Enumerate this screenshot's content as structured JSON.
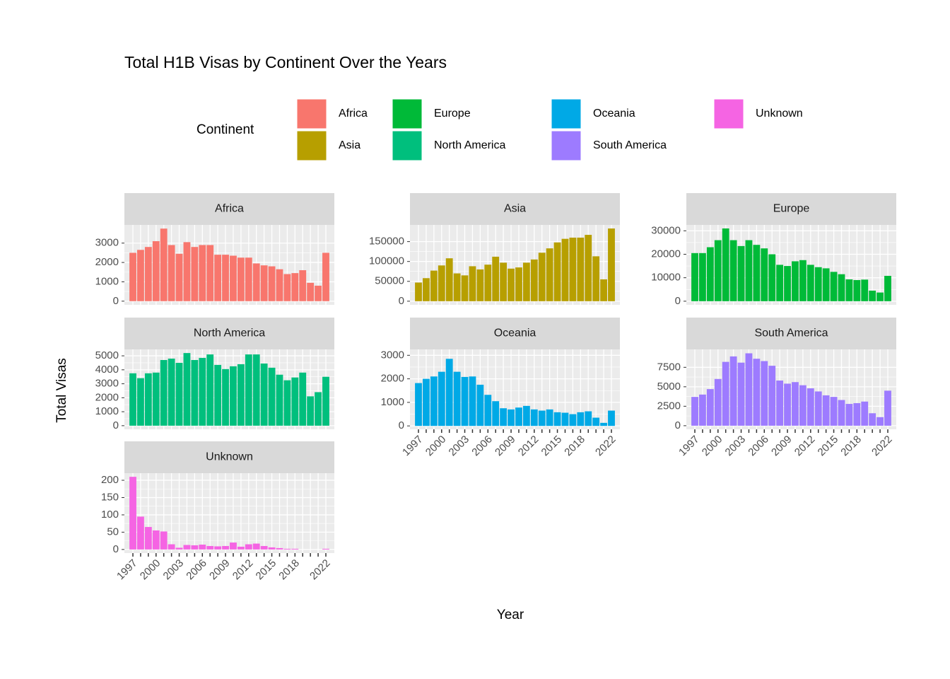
{
  "title": "Total H1B Visas by Continent Over the Years",
  "x_label": "Year",
  "y_label": "Total Visas",
  "legend_title": "Continent",
  "categories": [
    "1997",
    null,
    null,
    "2000",
    null,
    null,
    "2003",
    null,
    null,
    "2006",
    null,
    null,
    "2009",
    null,
    null,
    "2012",
    null,
    null,
    "2015",
    null,
    null,
    "2018",
    null,
    null,
    null,
    "2022"
  ],
  "chart_data": [
    {
      "type": "bar",
      "title": "Africa",
      "color": "#F8766D",
      "ylim": [
        -190,
        3940
      ],
      "yticks": [
        0,
        1000,
        2000,
        3000
      ],
      "grid": true,
      "values": [
        2500,
        2650,
        2800,
        3100,
        3750,
        2900,
        2450,
        3050,
        2800,
        2900,
        2900,
        2400,
        2400,
        2350,
        2250,
        2250,
        1950,
        1850,
        1800,
        1650,
        1400,
        1450,
        1600,
        950,
        800,
        2500
      ]
    },
    {
      "type": "bar",
      "title": "Asia",
      "color": "#B79F00",
      "ylim": [
        -9150,
        192000
      ],
      "yticks": [
        0,
        50000,
        100000,
        150000
      ],
      "grid": true,
      "values": [
        47000,
        58000,
        77000,
        90000,
        108000,
        70000,
        65000,
        88000,
        80000,
        92000,
        112000,
        97000,
        82000,
        85000,
        97000,
        105000,
        122000,
        133000,
        148000,
        157000,
        160000,
        160000,
        167000,
        113000,
        55000,
        183000
      ]
    },
    {
      "type": "bar",
      "title": "Europe",
      "color": "#00BA38",
      "ylim": [
        -1550,
        32500
      ],
      "yticks": [
        0,
        10000,
        20000,
        30000
      ],
      "grid": true,
      "values": [
        20500,
        20500,
        23000,
        26000,
        31000,
        26000,
        23500,
        26000,
        24000,
        22500,
        20000,
        15500,
        15000,
        17000,
        17500,
        15500,
        14500,
        14000,
        12500,
        11500,
        9300,
        9000,
        9200,
        4500,
        3700,
        10800
      ]
    },
    {
      "type": "bar",
      "title": "North America",
      "color": "#00BF7D",
      "ylim": [
        -260,
        5460
      ],
      "yticks": [
        0,
        1000,
        2000,
        3000,
        4000,
        5000
      ],
      "grid": true,
      "values": [
        3750,
        3400,
        3750,
        3800,
        4700,
        4800,
        4500,
        5200,
        4700,
        4850,
        5100,
        4350,
        4050,
        4250,
        4400,
        5100,
        5100,
        4450,
        4150,
        3650,
        3250,
        3450,
        3800,
        2100,
        2400,
        3500
      ]
    },
    {
      "type": "bar",
      "title": "Oceania",
      "color": "#00A9E6",
      "ylim": [
        -145,
        3250
      ],
      "yticks": [
        0,
        1000,
        2000,
        3000
      ],
      "grid": true,
      "values": [
        1820,
        2000,
        2100,
        2300,
        2850,
        2300,
        2080,
        2100,
        1750,
        1320,
        1050,
        750,
        700,
        780,
        850,
        700,
        650,
        700,
        580,
        560,
        500,
        580,
        620,
        350,
        130,
        650
      ]
    },
    {
      "type": "bar",
      "title": "South America",
      "color": "#9D7BFF",
      "ylim": [
        -465,
        9800
      ],
      "yticks": [
        0,
        2500,
        5000,
        7500
      ],
      "grid": true,
      "values": [
        3700,
        4000,
        4700,
        6000,
        8200,
        8900,
        8100,
        9300,
        8600,
        8300,
        7700,
        5800,
        5400,
        5600,
        5200,
        4800,
        4400,
        3900,
        3700,
        3300,
        2800,
        2900,
        3100,
        1600,
        1100,
        4500
      ]
    },
    {
      "type": "bar",
      "title": "Unknown",
      "color": "#F564E3",
      "ylim": [
        -10.5,
        220.5
      ],
      "yticks": [
        0,
        50,
        100,
        150,
        200
      ],
      "grid": true,
      "values": [
        210,
        95,
        65,
        55,
        52,
        15,
        5,
        13,
        12,
        14,
        10,
        9,
        10,
        20,
        8,
        15,
        17,
        10,
        6,
        4,
        2,
        2,
        0,
        0,
        0,
        2
      ]
    }
  ]
}
